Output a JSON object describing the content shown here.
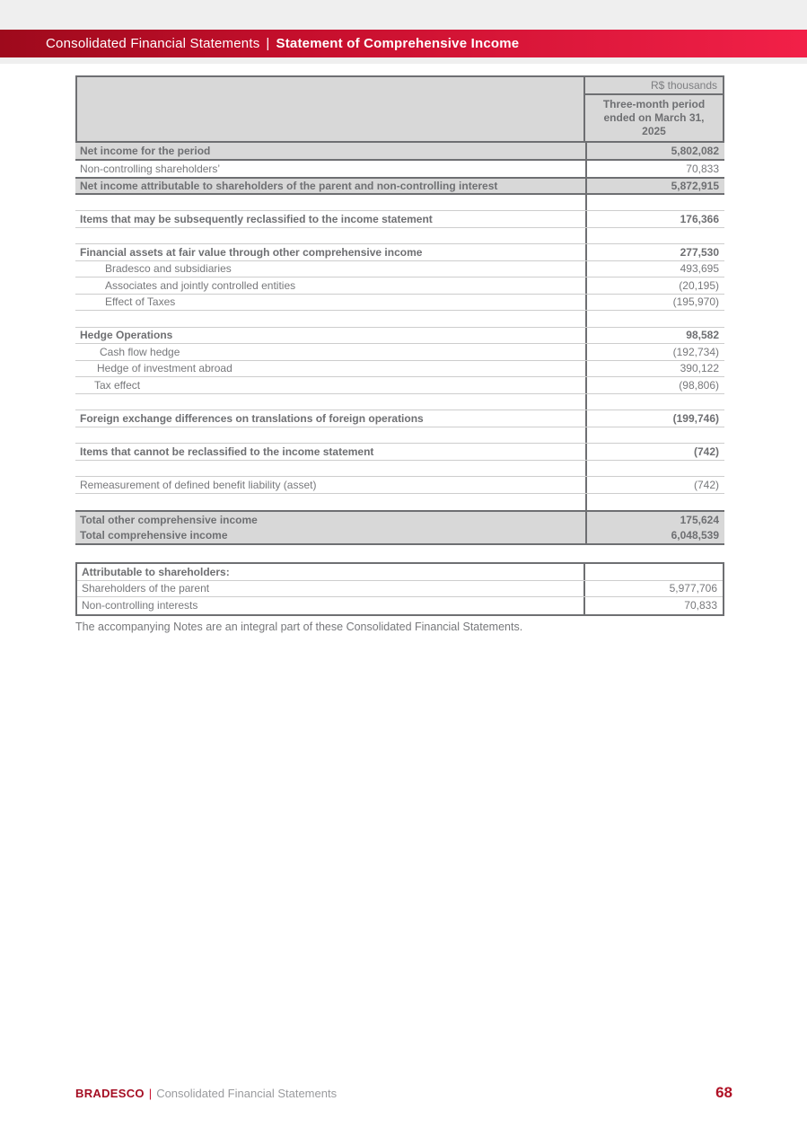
{
  "banner": {
    "left": "Consolidated Financial Statements",
    "separator": "|",
    "right": "Statement of Comprehensive Income"
  },
  "table": {
    "unit_label": "R$ thousands",
    "column_header": "Three-month period ended on March 31, 2025",
    "rows": [
      {
        "label": "Net income for the period",
        "value": "5,802,082",
        "type": "gray"
      },
      {
        "label": "Non-controlling shareholders’",
        "value": "70,833",
        "type": "normal"
      },
      {
        "label": "Net income attributable to shareholders of the parent and non-controlling interest",
        "value": "5,872,915",
        "type": "gray"
      },
      {
        "label": "",
        "value": "",
        "type": "blank"
      },
      {
        "label": "Items that may be subsequently reclassified to the income statement",
        "value": "176,366",
        "type": "bold"
      },
      {
        "label": "",
        "value": "",
        "type": "blank"
      },
      {
        "label": "Financial assets at fair value through other comprehensive income",
        "value": "277,530",
        "type": "bold"
      },
      {
        "label": "Bradesco and subsidiaries",
        "value": "493,695",
        "type": "normal",
        "indent": 28
      },
      {
        "label": "Associates and jointly controlled entities",
        "value": "(20,195)",
        "type": "normal",
        "indent": 28
      },
      {
        "label": "Effect of Taxes",
        "value": "(195,970)",
        "type": "normal",
        "indent": 28
      },
      {
        "label": "",
        "value": "",
        "type": "blank"
      },
      {
        "label": "Hedge Operations",
        "value": "98,582",
        "type": "bold"
      },
      {
        "label": "Cash flow hedge",
        "value": "(192,734)",
        "type": "normal",
        "indent": 22
      },
      {
        "label": "Hedge of investment abroad",
        "value": "390,122",
        "type": "normal",
        "indent": 19
      },
      {
        "label": "Tax effect",
        "value": "(98,806)",
        "type": "normal",
        "indent": 16
      },
      {
        "label": "",
        "value": "",
        "type": "blank"
      },
      {
        "label": "Foreign exchange differences on translations of foreign operations",
        "value": "(199,746)",
        "type": "bold"
      },
      {
        "label": "",
        "value": "",
        "type": "blank"
      },
      {
        "label": "Items that cannot be reclassified to the income statement",
        "value": "(742)",
        "type": "bold"
      },
      {
        "label": "",
        "value": "",
        "type": "blank"
      },
      {
        "label": "Remeasurement of defined benefit liability (asset)",
        "value": "(742)",
        "type": "normal"
      },
      {
        "label": "",
        "value": "",
        "type": "blank"
      },
      {
        "label": "Total other comprehensive income",
        "value": "175,624",
        "type": "gray"
      },
      {
        "label": "Total comprehensive income",
        "value": "6,048,539",
        "type": "gray"
      }
    ]
  },
  "attribution_table": {
    "rows": [
      {
        "label": "Attributable to shareholders:",
        "value": "",
        "type": "bold"
      },
      {
        "label": "Shareholders of the parent",
        "value": "5,977,706",
        "type": "normal"
      },
      {
        "label": "Non-controlling interests",
        "value": "70,833",
        "type": "normal"
      }
    ]
  },
  "footnote": "The accompanying Notes are an integral part of these Consolidated Financial Statements.",
  "footer": {
    "brand": "BRADESCO",
    "separator": "|",
    "section": "Consolidated Financial Statements",
    "page_number": "68"
  },
  "colors": {
    "banner_gradient_left": "#9e0a1c",
    "banner_gradient_right": "#f22048",
    "brand_red": "#a50e23",
    "page_number_red": "#b01226",
    "table_gray_bg": "#d8d8d8",
    "dark_border": "#6e6f72",
    "light_border": "#cdcdcd",
    "text_gray": "#77787b",
    "strip_gray": "#efefef"
  }
}
